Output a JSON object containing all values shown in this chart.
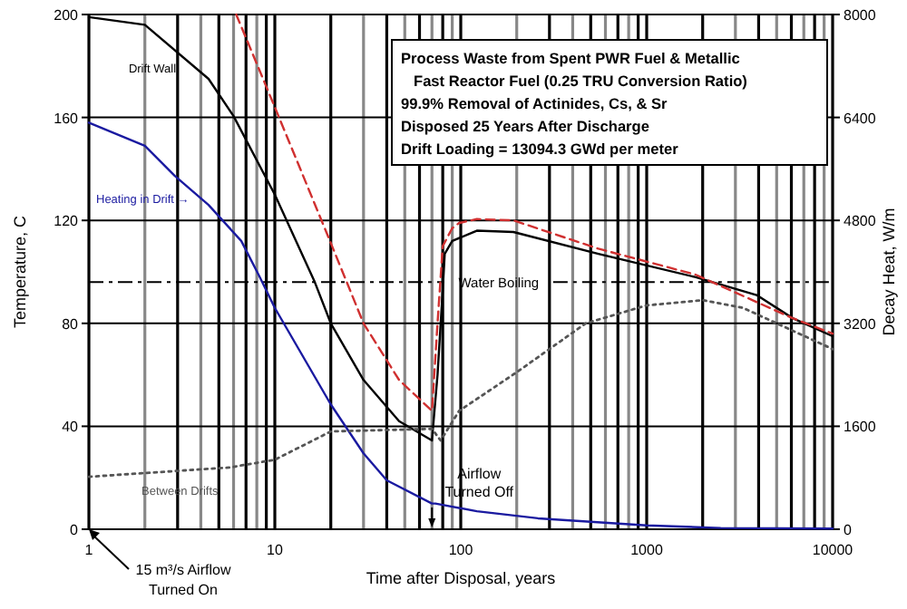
{
  "chart_data": {
    "type": "line",
    "xlabel": "Time after Disposal, years",
    "ylabel": "Temperature, C",
    "y2label": "Decay Heat, W/m",
    "log": "x",
    "grid": true,
    "xlim": [
      1,
      10000
    ],
    "ylim": [
      0,
      200
    ],
    "y2lim": [
      0,
      8000
    ],
    "xticks": [
      1,
      {
        "value": 2,
        "label": null
      },
      {
        "value": 3,
        "label": null
      },
      {
        "value": 4,
        "label": null
      },
      {
        "value": 5,
        "label": null
      },
      {
        "value": 6,
        "label": null
      },
      {
        "value": 7,
        "label": null
      },
      {
        "value": 8,
        "label": null
      },
      {
        "value": 9,
        "label": null
      },
      10,
      {
        "value": 20,
        "label": null
      },
      {
        "value": 30,
        "label": null
      },
      {
        "value": 40,
        "label": null
      },
      {
        "value": 50,
        "label": null
      },
      {
        "value": 60,
        "label": null
      },
      {
        "value": 70,
        "label": null
      },
      {
        "value": 80,
        "label": null
      },
      {
        "value": 90,
        "label": null
      },
      100,
      {
        "value": 200,
        "label": null
      },
      {
        "value": 300,
        "label": null
      },
      {
        "value": 400,
        "label": null
      },
      {
        "value": 500,
        "label": null
      },
      {
        "value": 600,
        "label": null
      },
      {
        "value": 700,
        "label": null
      },
      {
        "value": 800,
        "label": null
      },
      {
        "value": 900,
        "label": null
      },
      1000,
      {
        "value": 2000,
        "label": null
      },
      {
        "value": 3000,
        "label": null
      },
      {
        "value": 4000,
        "label": null
      },
      {
        "value": 5000,
        "label": null
      },
      {
        "value": 6000,
        "label": null
      },
      {
        "value": 7000,
        "label": null
      },
      {
        "value": 8000,
        "label": null
      },
      {
        "value": 9000,
        "label": null
      },
      10000
    ],
    "yticks": [
      0,
      40,
      80,
      120,
      160,
      200
    ],
    "y2ticks": [
      0,
      1600,
      3200,
      4800,
      6400,
      8000
    ],
    "series": [
      {
        "name": "Drift Wall",
        "color": "#000000",
        "line_style": "solid",
        "x": [
          1,
          2,
          4.4,
          6,
          10,
          16.3,
          20,
          30,
          46.6,
          70,
          75,
          80,
          82,
          90,
          122,
          192,
          550,
          1820,
          3900,
          6100,
          10000
        ],
        "values": [
          199,
          196,
          175,
          160.5,
          130,
          96.5,
          80,
          58,
          42,
          34.5,
          60,
          93,
          107,
          112,
          116,
          115.5,
          107,
          98,
          91,
          82,
          75
        ]
      },
      {
        "color": "#d03030",
        "line_style": "dashed",
        "x": [
          6.2,
          10,
          19.8,
          30,
          46.6,
          70,
          75,
          80,
          90,
          98,
          122,
          192,
          550,
          1820,
          6100,
          10000
        ],
        "values": [
          200,
          164,
          112,
          80,
          58,
          46,
          80,
          110,
          117,
          119,
          120.5,
          120,
          109,
          99,
          82,
          76
        ]
      },
      {
        "name": "Heating in Drift →",
        "color": "#1a1aa0",
        "line_style": "solid",
        "axis": "y2",
        "x": [
          1,
          2,
          2.9,
          4.4,
          6.6,
          8.3,
          10,
          20,
          30,
          40,
          70,
          73,
          122,
          260,
          1000,
          2500,
          10000
        ],
        "values": [
          6320,
          5960,
          5490,
          5040,
          4480,
          3920,
          3440,
          1940,
          1180,
          760,
          400,
          400,
          280,
          170,
          60,
          20,
          10
        ]
      },
      {
        "name": "Between Drifts",
        "color": "#555555",
        "line_style": "dotted",
        "x": [
          1,
          5.7,
          10,
          20,
          70,
          78,
          98,
          200,
          470,
          1000,
          2000,
          3300,
          10000
        ],
        "values": [
          20.4,
          24,
          27,
          38,
          39,
          34.5,
          46,
          61,
          80,
          87,
          89,
          86,
          70
        ]
      }
    ],
    "ref_lines": [
      {
        "axis": "y",
        "value": 96,
        "label": "Water Boiling",
        "line_style": "dashdot",
        "color": "#000000"
      }
    ],
    "annotations": [
      "Process Waste from Spent PWR Fuel &  Metallic",
      "Fast Reactor Fuel (0.25 TRU Conversion Ratio)",
      "99.9% Removal of Actinides, Cs, & Sr",
      "Disposed 25 Years After Discharge",
      "Drift Loading = 13094.3 GWd per meter",
      "Airflow Turned Off",
      "15 m³/s Airflow Turned On"
    ]
  }
}
